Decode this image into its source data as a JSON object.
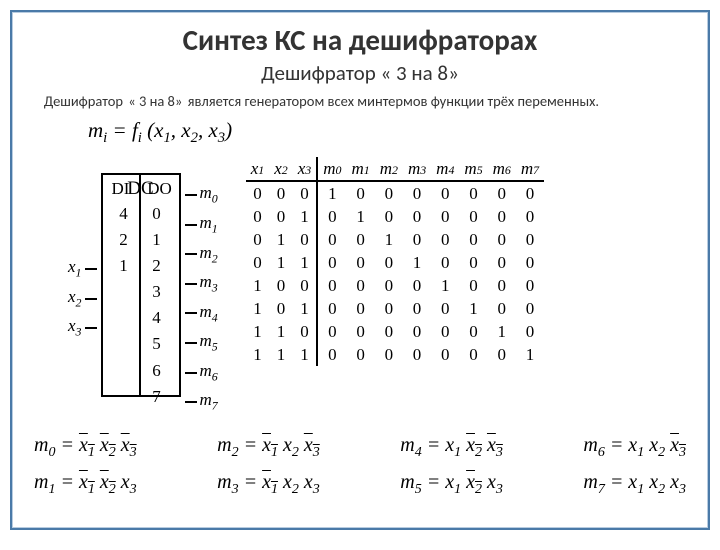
{
  "title": "Синтез КС на дешифраторах",
  "subtitle": "Дешифратор « 3 на 8»",
  "body_prefix": "Дешифратор ",
  "body_quoted": "« 3 на 8»",
  "body_suffix": " является генератором всех минтермов функции трёх переменных.",
  "main_eq": {
    "lhs_m": "m",
    "lhs_i": "i",
    "eq": " = ",
    "f": "f",
    "fi": "i",
    "args": " (x",
    "a1": "1",
    "c1": ", x",
    "a2": "2",
    "c2": ", x",
    "a3": "3",
    "close": ")"
  },
  "decoder": {
    "di_label": "DI",
    "dc_label": "DC",
    "do_label": "DO",
    "inputs": [
      {
        "x": "x",
        "s": "1",
        "n": "4"
      },
      {
        "x": "x",
        "s": "2",
        "n": "2"
      },
      {
        "x": "x",
        "s": "3",
        "n": "1"
      }
    ],
    "outputs": [
      {
        "n": "0",
        "m": "m",
        "s": "0"
      },
      {
        "n": "1",
        "m": "m",
        "s": "1"
      },
      {
        "n": "2",
        "m": "m",
        "s": "2"
      },
      {
        "n": "3",
        "m": "m",
        "s": "3"
      },
      {
        "n": "4",
        "m": "m",
        "s": "4"
      },
      {
        "n": "5",
        "m": "m",
        "s": "5"
      },
      {
        "n": "6",
        "m": "m",
        "s": "6"
      },
      {
        "n": "7",
        "m": "m",
        "s": "7"
      }
    ]
  },
  "truth": {
    "headers": [
      "x₁",
      "x₂",
      "x₃",
      "m₀",
      "m₁",
      "m₂",
      "m₃",
      "m₄",
      "m₅",
      "m₆",
      "m₇"
    ],
    "header_x": [
      "x",
      "x",
      "x"
    ],
    "header_xs": [
      "1",
      "2",
      "3"
    ],
    "header_m": [
      "m",
      "m",
      "m",
      "m",
      "m",
      "m",
      "m",
      "m"
    ],
    "header_ms": [
      "0",
      "1",
      "2",
      "3",
      "4",
      "5",
      "6",
      "7"
    ],
    "rows": [
      [
        "0",
        "0",
        "0",
        "1",
        "0",
        "0",
        "0",
        "0",
        "0",
        "0",
        "0"
      ],
      [
        "0",
        "0",
        "1",
        "0",
        "1",
        "0",
        "0",
        "0",
        "0",
        "0",
        "0"
      ],
      [
        "0",
        "1",
        "0",
        "0",
        "0",
        "1",
        "0",
        "0",
        "0",
        "0",
        "0"
      ],
      [
        "0",
        "1",
        "1",
        "0",
        "0",
        "0",
        "1",
        "0",
        "0",
        "0",
        "0"
      ],
      [
        "1",
        "0",
        "0",
        "0",
        "0",
        "0",
        "0",
        "1",
        "0",
        "0",
        "0"
      ],
      [
        "1",
        "0",
        "1",
        "0",
        "0",
        "0",
        "0",
        "0",
        "1",
        "0",
        "0"
      ],
      [
        "1",
        "1",
        "0",
        "0",
        "0",
        "0",
        "0",
        "0",
        "0",
        "1",
        "0"
      ],
      [
        "1",
        "1",
        "1",
        "0",
        "0",
        "0",
        "0",
        "0",
        "0",
        "0",
        "1"
      ]
    ]
  },
  "equations": [
    [
      {
        "m": "m",
        "i": "0",
        "t": [
          {
            "v": "x",
            "s": "1",
            "o": 1
          },
          {
            "v": "x",
            "s": "2",
            "o": 1
          },
          {
            "v": "x",
            "s": "3",
            "o": 1
          }
        ]
      },
      {
        "m": "m",
        "i": "1",
        "t": [
          {
            "v": "x",
            "s": "1",
            "o": 1
          },
          {
            "v": "x",
            "s": "2",
            "o": 1
          },
          {
            "v": "x",
            "s": "3",
            "o": 0
          }
        ]
      }
    ],
    [
      {
        "m": "m",
        "i": "2",
        "t": [
          {
            "v": "x",
            "s": "1",
            "o": 1
          },
          {
            "v": "x",
            "s": "2",
            "o": 0
          },
          {
            "v": "x",
            "s": "3",
            "o": 1
          }
        ]
      },
      {
        "m": "m",
        "i": "3",
        "t": [
          {
            "v": "x",
            "s": "1",
            "o": 1
          },
          {
            "v": "x",
            "s": "2",
            "o": 0
          },
          {
            "v": "x",
            "s": "3",
            "o": 0
          }
        ]
      }
    ],
    [
      {
        "m": "m",
        "i": "4",
        "t": [
          {
            "v": "x",
            "s": "1",
            "o": 0
          },
          {
            "v": "x",
            "s": "2",
            "o": 1
          },
          {
            "v": "x",
            "s": "3",
            "o": 1
          }
        ]
      },
      {
        "m": "m",
        "i": "5",
        "t": [
          {
            "v": "x",
            "s": "1",
            "o": 0
          },
          {
            "v": "x",
            "s": "2",
            "o": 1
          },
          {
            "v": "x",
            "s": "3",
            "o": 0
          }
        ]
      }
    ],
    [
      {
        "m": "m",
        "i": "6",
        "t": [
          {
            "v": "x",
            "s": "1",
            "o": 0
          },
          {
            "v": "x",
            "s": "2",
            "o": 0
          },
          {
            "v": "x",
            "s": "3",
            "o": 1
          }
        ]
      },
      {
        "m": "m",
        "i": "7",
        "t": [
          {
            "v": "x",
            "s": "1",
            "o": 0
          },
          {
            "v": "x",
            "s": "2",
            "o": 0
          },
          {
            "v": "x",
            "s": "3",
            "o": 0
          }
        ]
      }
    ]
  ],
  "colors": {
    "frame_border": "#4a7aa8",
    "text": "#333333",
    "rule": "#000000"
  }
}
